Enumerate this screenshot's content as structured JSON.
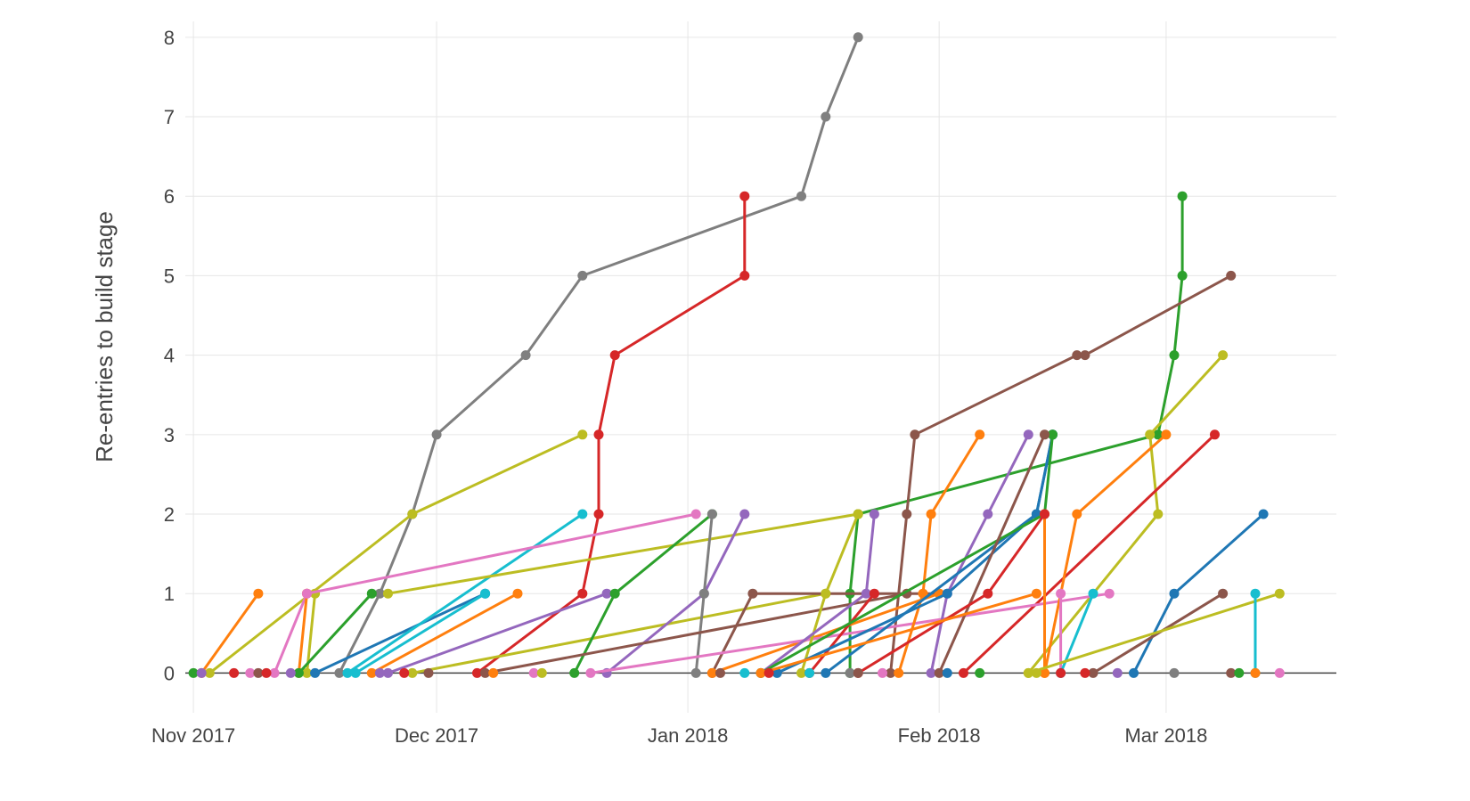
{
  "chart_data": {
    "type": "line",
    "ylabel": "Re-entries to build stage",
    "xlim": [
      "2017-10-31",
      "2018-03-22"
    ],
    "ylim": [
      -0.5,
      8.2
    ],
    "x_ticks": [
      {
        "date": "2017-11-01",
        "label": "Nov 2017"
      },
      {
        "date": "2017-12-01",
        "label": "Dec 2017"
      },
      {
        "date": "2018-01-01",
        "label": "Jan 2018"
      },
      {
        "date": "2018-02-01",
        "label": "Feb 2018"
      },
      {
        "date": "2018-03-01",
        "label": "Mar 2018"
      }
    ],
    "y_ticks": [
      0,
      1,
      2,
      3,
      4,
      5,
      6,
      7,
      8
    ],
    "grid": true,
    "markers": true,
    "series": [
      {
        "color": "#7f7f7f",
        "points": [
          [
            "2017-11-19",
            0
          ],
          [
            "2017-11-24",
            1
          ],
          [
            "2017-11-28",
            2
          ],
          [
            "2017-12-01",
            3
          ],
          [
            "2017-12-12",
            4
          ],
          [
            "2017-12-19",
            5
          ],
          [
            "2018-01-15",
            6
          ],
          [
            "2018-01-18",
            7
          ],
          [
            "2018-01-22",
            8
          ]
        ]
      },
      {
        "color": "#d62728",
        "points": [
          [
            "2017-12-06",
            0
          ],
          [
            "2017-12-19",
            1
          ],
          [
            "2017-12-21",
            2
          ],
          [
            "2017-12-21",
            3
          ],
          [
            "2017-12-23",
            4
          ],
          [
            "2018-01-08",
            5
          ],
          [
            "2018-01-08",
            6
          ]
        ]
      },
      {
        "color": "#bcbd22",
        "points": [
          [
            "2017-11-03",
            0
          ],
          [
            "2017-11-28",
            2
          ],
          [
            "2017-12-19",
            3
          ]
        ]
      },
      {
        "color": "#2ca02c",
        "points": [
          [
            "2018-01-21",
            0
          ],
          [
            "2018-01-21",
            1
          ],
          [
            "2018-01-22",
            2
          ],
          [
            "2018-02-28",
            3
          ],
          [
            "2018-03-02",
            4
          ],
          [
            "2018-03-03",
            5
          ],
          [
            "2018-03-03",
            6
          ]
        ]
      },
      {
        "color": "#8c564b",
        "points": [
          [
            "2018-01-26",
            0
          ],
          [
            "2018-01-28",
            2
          ],
          [
            "2018-01-29",
            3
          ],
          [
            "2018-02-18",
            4
          ],
          [
            "2018-02-19",
            4
          ],
          [
            "2018-03-09",
            5
          ]
        ]
      },
      {
        "color": "#bcbd22",
        "points": [
          [
            "2018-02-12",
            0
          ],
          [
            "2018-02-28",
            2
          ],
          [
            "2018-02-27",
            3
          ],
          [
            "2018-03-08",
            4
          ]
        ]
      },
      {
        "color": "#d62728",
        "points": [
          [
            "2018-02-04",
            0
          ],
          [
            "2018-03-07",
            3
          ]
        ]
      },
      {
        "color": "#1f77b4",
        "points": [
          [
            "2018-02-25",
            0
          ],
          [
            "2018-03-02",
            1
          ],
          [
            "2018-03-13",
            2
          ]
        ]
      },
      {
        "color": "#8c564b",
        "points": [
          [
            "2018-02-20",
            0
          ],
          [
            "2018-03-08",
            1
          ]
        ]
      },
      {
        "color": "#ff7f0e",
        "points": [
          [
            "2017-11-02",
            0
          ],
          [
            "2017-11-09",
            1
          ]
        ]
      },
      {
        "color": "#e377c2",
        "points": [
          [
            "2017-11-11",
            0
          ],
          [
            "2017-11-15",
            1
          ]
        ]
      },
      {
        "color": "#ff7f0e",
        "points": [
          [
            "2017-11-14",
            0
          ],
          [
            "2017-11-15",
            1
          ]
        ]
      },
      {
        "color": "#bcbd22",
        "points": [
          [
            "2017-11-15",
            0
          ],
          [
            "2017-11-16",
            1
          ]
        ]
      },
      {
        "color": "#2ca02c",
        "points": [
          [
            "2017-11-14",
            0
          ],
          [
            "2017-11-23",
            1
          ]
        ]
      },
      {
        "color": "#1f77b4",
        "points": [
          [
            "2017-11-16",
            0
          ],
          [
            "2017-12-07",
            1
          ]
        ]
      },
      {
        "color": "#17becf",
        "points": [
          [
            "2017-11-21",
            0
          ],
          [
            "2017-12-07",
            1
          ]
        ]
      },
      {
        "color": "#17becf",
        "points": [
          [
            "2017-11-20",
            0
          ],
          [
            "2017-12-19",
            2
          ]
        ]
      },
      {
        "color": "#ff7f0e",
        "points": [
          [
            "2017-11-23",
            0
          ],
          [
            "2017-12-11",
            1
          ]
        ]
      },
      {
        "color": "#9467bd",
        "points": [
          [
            "2017-11-25",
            0
          ],
          [
            "2017-12-22",
            1
          ]
        ]
      },
      {
        "color": "#e377c2",
        "points": [
          [
            "2017-11-15",
            1
          ],
          [
            "2018-01-02",
            2
          ]
        ]
      },
      {
        "color": "#bcbd22",
        "points": [
          [
            "2017-11-25",
            1
          ],
          [
            "2018-01-22",
            2
          ]
        ]
      },
      {
        "color": "#bcbd22",
        "points": [
          [
            "2017-11-28",
            0
          ],
          [
            "2018-01-18",
            1
          ]
        ]
      },
      {
        "color": "#2ca02c",
        "points": [
          [
            "2017-12-18",
            0
          ],
          [
            "2017-12-23",
            1
          ],
          [
            "2018-01-04",
            2
          ]
        ]
      },
      {
        "color": "#9467bd",
        "points": [
          [
            "2017-12-22",
            0
          ],
          [
            "2018-01-03",
            1
          ],
          [
            "2018-01-08",
            2
          ]
        ]
      },
      {
        "color": "#7f7f7f",
        "points": [
          [
            "2018-01-02",
            0
          ],
          [
            "2018-01-03",
            1
          ],
          [
            "2018-01-04",
            2
          ]
        ]
      },
      {
        "color": "#8c564b",
        "points": [
          [
            "2018-01-04",
            0
          ],
          [
            "2018-01-09",
            1
          ],
          [
            "2018-02-01",
            1
          ]
        ]
      },
      {
        "color": "#8c564b",
        "points": [
          [
            "2017-12-07",
            0
          ],
          [
            "2018-01-28",
            1
          ]
        ]
      },
      {
        "color": "#ff7f0e",
        "points": [
          [
            "2018-01-04",
            0
          ],
          [
            "2018-02-01",
            1
          ]
        ]
      },
      {
        "color": "#e377c2",
        "points": [
          [
            "2017-12-20",
            0
          ],
          [
            "2018-02-22",
            1
          ]
        ]
      },
      {
        "color": "#bcbd22",
        "points": [
          [
            "2018-01-15",
            0
          ],
          [
            "2018-01-18",
            1
          ],
          [
            "2018-01-22",
            2
          ]
        ]
      },
      {
        "color": "#9467bd",
        "points": [
          [
            "2018-01-10",
            0
          ],
          [
            "2018-01-23",
            1
          ],
          [
            "2018-01-24",
            2
          ]
        ]
      },
      {
        "color": "#d62728",
        "points": [
          [
            "2018-01-16",
            0
          ],
          [
            "2018-01-24",
            1
          ]
        ]
      },
      {
        "color": "#ff7f0e",
        "points": [
          [
            "2018-01-27",
            0
          ],
          [
            "2018-01-30",
            1
          ],
          [
            "2018-01-31",
            2
          ],
          [
            "2018-02-06",
            3
          ]
        ]
      },
      {
        "color": "#9467bd",
        "points": [
          [
            "2018-01-31",
            0
          ],
          [
            "2018-02-02",
            1
          ],
          [
            "2018-02-07",
            2
          ],
          [
            "2018-02-12",
            3
          ]
        ]
      },
      {
        "color": "#1f77b4",
        "points": [
          [
            "2018-01-12",
            0
          ],
          [
            "2018-02-02",
            1
          ],
          [
            "2018-02-13",
            2
          ],
          [
            "2018-02-15",
            3
          ]
        ]
      },
      {
        "color": "#1f77b4",
        "points": [
          [
            "2018-01-18",
            0
          ],
          [
            "2018-02-13",
            2
          ],
          [
            "2018-02-15",
            3
          ]
        ]
      },
      {
        "color": "#2ca02c",
        "points": [
          [
            "2018-01-10",
            0
          ],
          [
            "2018-02-14",
            2
          ],
          [
            "2018-02-15",
            3
          ]
        ]
      },
      {
        "color": "#8c564b",
        "points": [
          [
            "2018-02-01",
            0
          ],
          [
            "2018-02-14",
            3
          ]
        ]
      },
      {
        "color": "#ff7f0e",
        "points": [
          [
            "2018-02-14",
            0
          ],
          [
            "2018-02-14",
            2
          ]
        ]
      },
      {
        "color": "#d62728",
        "points": [
          [
            "2018-01-22",
            0
          ],
          [
            "2018-02-07",
            1
          ],
          [
            "2018-02-14",
            2
          ]
        ]
      },
      {
        "color": "#ff7f0e",
        "points": [
          [
            "2018-02-14",
            0
          ],
          [
            "2018-02-18",
            2
          ],
          [
            "2018-03-01",
            3
          ]
        ]
      },
      {
        "color": "#ff7f0e",
        "points": [
          [
            "2018-01-10",
            0
          ],
          [
            "2018-02-13",
            1
          ]
        ]
      },
      {
        "color": "#e377c2",
        "points": [
          [
            "2018-02-16",
            0
          ],
          [
            "2018-02-16",
            1
          ]
        ]
      },
      {
        "color": "#17becf",
        "points": [
          [
            "2018-02-16",
            0
          ],
          [
            "2018-02-20",
            1
          ]
        ]
      },
      {
        "color": "#bcbd22",
        "points": [
          [
            "2018-02-12",
            0
          ],
          [
            "2018-03-15",
            1
          ]
        ]
      },
      {
        "color": "#17becf",
        "points": [
          [
            "2018-03-12",
            0
          ],
          [
            "2018-03-12",
            1
          ]
        ]
      }
    ],
    "baseline_markers": [
      {
        "color": "#2ca02c",
        "x": "2017-11-01"
      },
      {
        "color": "#9467bd",
        "x": "2017-11-02"
      },
      {
        "color": "#d62728",
        "x": "2017-11-06"
      },
      {
        "color": "#e377c2",
        "x": "2017-11-08"
      },
      {
        "color": "#8c564b",
        "x": "2017-11-09"
      },
      {
        "color": "#d62728",
        "x": "2017-11-10"
      },
      {
        "color": "#9467bd",
        "x": "2017-11-13"
      },
      {
        "color": "#9467bd",
        "x": "2017-11-24"
      },
      {
        "color": "#d62728",
        "x": "2017-11-27"
      },
      {
        "color": "#8c564b",
        "x": "2017-11-30"
      },
      {
        "color": "#ff7f0e",
        "x": "2017-12-08"
      },
      {
        "color": "#e377c2",
        "x": "2017-12-13"
      },
      {
        "color": "#bcbd22",
        "x": "2017-12-14"
      },
      {
        "color": "#8c564b",
        "x": "2018-01-05"
      },
      {
        "color": "#17becf",
        "x": "2018-01-08"
      },
      {
        "color": "#d62728",
        "x": "2018-01-11"
      },
      {
        "color": "#17becf",
        "x": "2018-01-16"
      },
      {
        "color": "#7f7f7f",
        "x": "2018-01-21"
      },
      {
        "color": "#8c564b",
        "x": "2018-01-22"
      },
      {
        "color": "#e377c2",
        "x": "2018-01-25"
      },
      {
        "color": "#1f77b4",
        "x": "2018-02-02"
      },
      {
        "color": "#2ca02c",
        "x": "2018-02-06"
      },
      {
        "color": "#bcbd22",
        "x": "2018-02-13"
      },
      {
        "color": "#d62728",
        "x": "2018-02-16"
      },
      {
        "color": "#d62728",
        "x": "2018-02-19"
      },
      {
        "color": "#9467bd",
        "x": "2018-02-23"
      },
      {
        "color": "#7f7f7f",
        "x": "2018-03-02"
      },
      {
        "color": "#8c564b",
        "x": "2018-03-09"
      },
      {
        "color": "#2ca02c",
        "x": "2018-03-10"
      },
      {
        "color": "#ff7f0e",
        "x": "2018-03-12"
      },
      {
        "color": "#e377c2",
        "x": "2018-03-15"
      }
    ]
  }
}
